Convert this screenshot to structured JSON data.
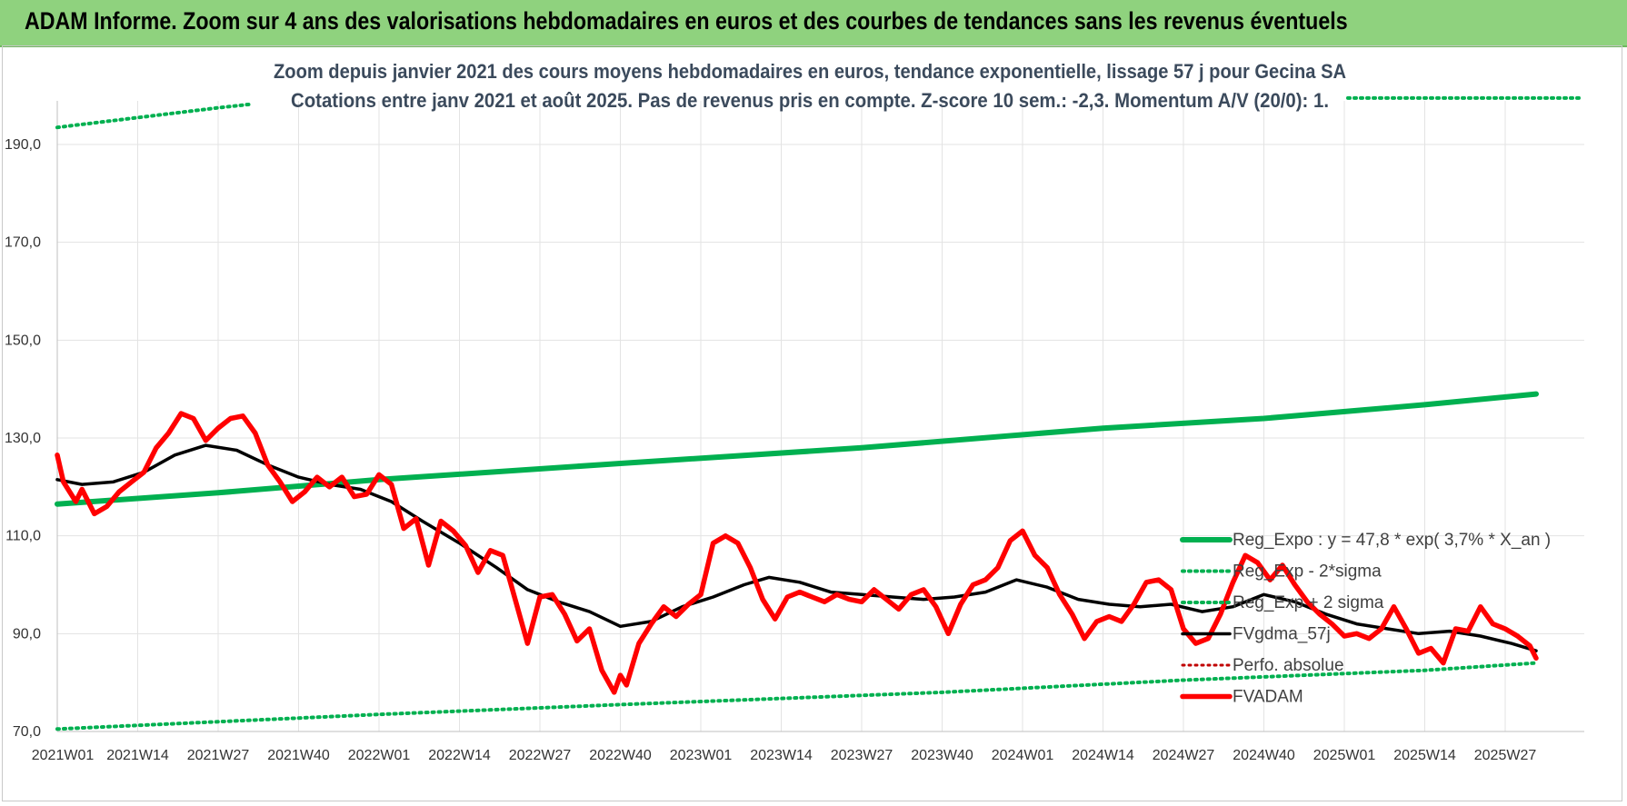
{
  "banner": {
    "title": "ADAM Informe. Zoom sur 4 ans des valorisations hebdomadaires en euros et des courbes de tendances sans les revenus éventuels"
  },
  "colors": {
    "banner_bg": "#8fd27e",
    "reg_expo": "#00b050",
    "sigma_bands": "#00b050",
    "fvgdma": "#000000",
    "perfo": "#c00000",
    "fvadam": "#ff0000"
  },
  "chart_data": {
    "type": "line",
    "title": "Zoom depuis janvier 2021 des cours moyens hebdomadaires en euros, tendance exponentielle, lissage 57 j pour Gecina SA",
    "subtitle": "Cotations entre janv 2021 et août 2025.  Pas de revenus pris en compte. Z-score 10 sem.: -2,3. Momentum A/V (20/0): 1.",
    "ylim": [
      70,
      200
    ],
    "yticks": [
      "70,0",
      "90,0",
      "110,0",
      "130,0",
      "150,0",
      "170,0",
      "190,0"
    ],
    "ytick_values": [
      70,
      90,
      110,
      130,
      150,
      170,
      190
    ],
    "x_labels": [
      "2021W01",
      "2021W14",
      "2021W27",
      "2021W40",
      "2022W01",
      "2022W14",
      "2022W27",
      "2022W40",
      "2023W01",
      "2023W14",
      "2023W27",
      "2023W40",
      "2024W01",
      "2024W14",
      "2024W27",
      "2024W40",
      "2025W01",
      "2025W14",
      "2025W27"
    ],
    "grid": true,
    "legend_position": "bottom-right",
    "series": [
      {
        "name": "Reg_Expo : y = 47,8 * exp( 3,7% *  X_an )",
        "style": "solid-thick",
        "x": [
          "2021W01",
          "2021W27",
          "2022W01",
          "2022W40",
          "2023W27",
          "2024W14",
          "2024W40",
          "2025W14",
          "2025W32"
        ],
        "y": [
          116.5,
          118.8,
          121.5,
          124.8,
          128.0,
          132.0,
          134.0,
          136.8,
          139.0
        ]
      },
      {
        "name": "Reg_Exp - 2*sigma",
        "style": "dotted",
        "x": [
          "2021W01",
          "2022W01",
          "2022W40",
          "2023W40",
          "2024W27",
          "2025W14",
          "2025W32"
        ],
        "y": [
          70.5,
          73.5,
          75.5,
          78.0,
          80.5,
          82.5,
          84.0
        ]
      },
      {
        "name": "Reg_Exp + 2 sigma",
        "style": "dotted",
        "x": [
          "2021W01",
          "2021W14",
          "2021W27",
          "2021W32"
        ],
        "y": [
          193.5,
          195.5,
          197.5,
          198.2
        ]
      },
      {
        "name": "FVgdma_57j",
        "style": "solid",
        "x": [
          "2021W01",
          "2021W05",
          "2021W10",
          "2021W15",
          "2021W20",
          "2021W25",
          "2021W30",
          "2021W35",
          "2021W40",
          "2021W45",
          "2021W50",
          "2022W03",
          "2022W08",
          "2022W14",
          "2022W20",
          "2022W25",
          "2022W30",
          "2022W35",
          "2022W40",
          "2022W45",
          "2022W50",
          "2023W03",
          "2023W08",
          "2023W12",
          "2023W17",
          "2023W22",
          "2023W27",
          "2023W32",
          "2023W37",
          "2023W42",
          "2023W47",
          "2023W52",
          "2024W05",
          "2024W10",
          "2024W15",
          "2024W20",
          "2024W25",
          "2024W30",
          "2024W35",
          "2024W40",
          "2024W45",
          "2024W50",
          "2025W03",
          "2025W08",
          "2025W13",
          "2025W18",
          "2025W23",
          "2025W28",
          "2025W32"
        ],
        "y": [
          121.5,
          120.5,
          121.0,
          123.0,
          126.5,
          128.5,
          127.5,
          124.5,
          122.0,
          120.5,
          119.5,
          117.0,
          113.0,
          108.5,
          103.5,
          99.0,
          96.5,
          94.5,
          91.5,
          92.5,
          95.5,
          97.5,
          100.0,
          101.5,
          100.5,
          98.5,
          98.0,
          97.5,
          97.0,
          97.5,
          98.5,
          101.0,
          99.5,
          97.0,
          96.0,
          95.5,
          96.0,
          94.5,
          95.5,
          98.0,
          96.5,
          94.0,
          92.0,
          91.0,
          90.0,
          90.5,
          89.5,
          88.0,
          86.5
        ]
      },
      {
        "name": "Perfo. absolue",
        "style": "dotted",
        "x": [],
        "y": []
      },
      {
        "name": "FVADAM",
        "style": "solid-thick",
        "x": [
          "2021W01",
          "2021W02",
          "2021W04",
          "2021W05",
          "2021W07",
          "2021W09",
          "2021W11",
          "2021W13",
          "2021W15",
          "2021W17",
          "2021W19",
          "2021W21",
          "2021W23",
          "2021W25",
          "2021W27",
          "2021W29",
          "2021W31",
          "2021W33",
          "2021W35",
          "2021W37",
          "2021W39",
          "2021W41",
          "2021W43",
          "2021W45",
          "2021W47",
          "2021W49",
          "2021W51",
          "2022W01",
          "2022W03",
          "2022W05",
          "2022W07",
          "2022W09",
          "2022W11",
          "2022W13",
          "2022W15",
          "2022W17",
          "2022W19",
          "2022W21",
          "2022W23",
          "2022W25",
          "2022W27",
          "2022W29",
          "2022W31",
          "2022W33",
          "2022W35",
          "2022W37",
          "2022W39",
          "2022W40",
          "2022W41",
          "2022W43",
          "2022W45",
          "2022W47",
          "2022W49",
          "2022W51",
          "2023W01",
          "2023W03",
          "2023W05",
          "2023W07",
          "2023W09",
          "2023W11",
          "2023W13",
          "2023W15",
          "2023W17",
          "2023W19",
          "2023W21",
          "2023W23",
          "2023W25",
          "2023W27",
          "2023W29",
          "2023W31",
          "2023W33",
          "2023W35",
          "2023W37",
          "2023W39",
          "2023W41",
          "2023W43",
          "2023W45",
          "2023W47",
          "2023W49",
          "2023W51",
          "2024W01",
          "2024W03",
          "2024W05",
          "2024W07",
          "2024W09",
          "2024W11",
          "2024W13",
          "2024W15",
          "2024W17",
          "2024W19",
          "2024W21",
          "2024W23",
          "2024W25",
          "2024W27",
          "2024W29",
          "2024W31",
          "2024W33",
          "2024W35",
          "2024W37",
          "2024W39",
          "2024W41",
          "2024W43",
          "2024W45",
          "2024W47",
          "2024W49",
          "2024W51",
          "2025W01",
          "2025W03",
          "2025W05",
          "2025W07",
          "2025W09",
          "2025W11",
          "2025W13",
          "2025W15",
          "2025W17",
          "2025W19",
          "2025W21",
          "2025W23",
          "2025W25",
          "2025W27",
          "2025W29",
          "2025W31",
          "2025W32"
        ],
        "y": [
          126.5,
          121.0,
          117.0,
          119.5,
          114.5,
          116.0,
          119.0,
          121.0,
          123.0,
          128.0,
          131.0,
          135.0,
          134.0,
          129.5,
          132.0,
          134.0,
          134.5,
          131.0,
          124.5,
          121.0,
          117.0,
          119.0,
          122.0,
          120.0,
          122.0,
          118.0,
          118.5,
          122.5,
          120.5,
          111.5,
          113.5,
          104.0,
          113.0,
          111.0,
          108.0,
          102.5,
          107.0,
          106.0,
          97.0,
          88.0,
          97.5,
          98.0,
          94.0,
          88.5,
          91.0,
          82.5,
          78.0,
          81.5,
          79.5,
          88.0,
          92.0,
          95.5,
          93.5,
          96.0,
          98.0,
          108.5,
          110.0,
          108.5,
          103.5,
          97.0,
          93.0,
          97.5,
          98.5,
          97.5,
          96.5,
          98.0,
          97.0,
          96.5,
          99.0,
          97.0,
          95.0,
          98.0,
          99.0,
          95.5,
          90.0,
          96.0,
          100.0,
          101.0,
          103.5,
          109.0,
          111.0,
          106.0,
          103.5,
          98.0,
          94.0,
          89.0,
          92.5,
          93.5,
          92.5,
          96.0,
          100.5,
          101.0,
          99.0,
          91.0,
          88.0,
          89.0,
          94.0,
          100.5,
          106.0,
          104.5,
          101.0,
          104.0,
          100.0,
          96.5,
          94.0,
          92.0,
          89.5,
          90.0,
          89.0,
          91.0,
          95.5,
          91.0,
          86.0,
          87.0,
          84.0,
          91.0,
          90.5,
          95.5,
          92.0,
          91.0,
          89.5,
          87.5,
          85.0
        ]
      }
    ]
  }
}
